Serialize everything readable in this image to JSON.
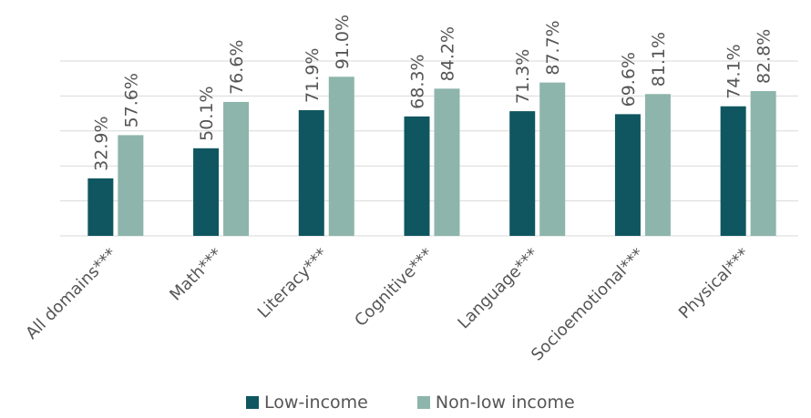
{
  "chart_data": {
    "type": "bar",
    "title": "",
    "xlabel": "",
    "ylabel": "",
    "ylim": [
      0,
      100
    ],
    "grid": true,
    "legend_position": "bottom",
    "categories": [
      "All domains***",
      "Math***",
      "Literacy***",
      "Cognitive***",
      "Language***",
      "Socioemotional***",
      "Physical***"
    ],
    "series": [
      {
        "name": "Low-income",
        "color": "#0f5660",
        "values": [
          32.9,
          50.1,
          71.9,
          68.3,
          71.3,
          69.6,
          74.1
        ],
        "labels": [
          "32.9%",
          "50.1%",
          "71.9%",
          "68.3%",
          "71.3%",
          "69.6%",
          "74.1%"
        ]
      },
      {
        "name": "Non-low income",
        "color": "#8db5ab",
        "values": [
          57.6,
          76.6,
          91.0,
          84.2,
          87.7,
          81.1,
          82.8
        ],
        "labels": [
          "57.6%",
          "76.6%",
          "91.0%",
          "84.2%",
          "87.7%",
          "81.1%",
          "82.8%"
        ]
      }
    ]
  }
}
